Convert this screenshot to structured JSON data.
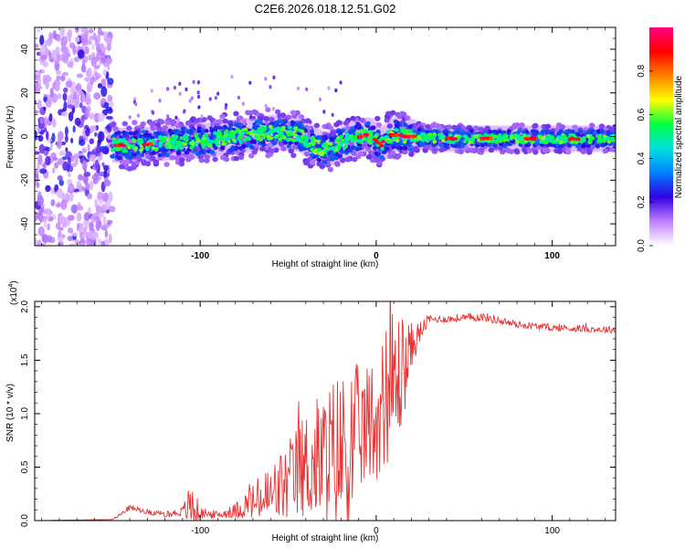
{
  "title": "C2E6.2026.018.12.51.G02",
  "chart_data": [
    {
      "type": "heatmap",
      "xlabel": "Height of straight line (km)",
      "ylabel": "Frequency (Hz)",
      "xlim": [
        -194,
        136
      ],
      "ylim": [
        -50,
        50
      ],
      "xticks": [
        -100,
        0,
        100
      ],
      "xtick_labels": [
        "-100",
        "0",
        "100"
      ],
      "yticks": [
        -40,
        -20,
        0,
        20,
        40
      ],
      "ytick_labels": [
        "-40",
        "-20",
        "0",
        "20",
        "40"
      ],
      "colorbar": {
        "label": "Normalized spectral amplitude",
        "range": [
          0,
          1
        ],
        "ticks": [
          0.0,
          0.2,
          0.4,
          0.6,
          0.8
        ],
        "tick_labels": [
          "0.0",
          "0.2",
          "0.4",
          "0.6",
          "0.8"
        ],
        "colors": [
          "#ffffff",
          "#c080ff",
          "#3000e0",
          "#0080ff",
          "#00e0e0",
          "#00ff40",
          "#ffff00",
          "#ff8000",
          "#ff0000",
          "#ff0080"
        ]
      },
      "ridge_center": {
        "x": [
          -194,
          -150,
          -140,
          -120,
          -100,
          -80,
          -60,
          -45,
          -35,
          -30,
          -25,
          -20,
          -15,
          -10,
          -5,
          0,
          3,
          6,
          10,
          20,
          40,
          80,
          136
        ],
        "y": [
          0,
          -4,
          -4,
          -3,
          -2,
          0,
          2,
          1,
          -4,
          -6,
          -5,
          -3,
          -1,
          0,
          1,
          -2,
          -4,
          0,
          1,
          0,
          -1,
          -1,
          -1
        ]
      },
      "noise_region_x": [
        -194,
        -150
      ]
    },
    {
      "type": "line",
      "xlabel": "Height of straight line (km)",
      "ylabel": "SNR (10 * v/v)",
      "y_multiplier": "(x10",
      "y_multiplier_exp": "4",
      "xlim": [
        -194,
        136
      ],
      "ylim": [
        0,
        2.05
      ],
      "xticks": [
        -100,
        0,
        100
      ],
      "xtick_labels": [
        "-100",
        "0",
        "100"
      ],
      "yticks": [
        0.0,
        0.5,
        1.0,
        1.5,
        2.0
      ],
      "ytick_labels": [
        "0.0",
        "0.5",
        "1.0",
        "1.5",
        "2.0"
      ],
      "line_color": "#e83232",
      "envelope": {
        "x": [
          -194,
          -150,
          -145,
          -140,
          -130,
          -120,
          -110,
          -105,
          -100,
          -90,
          -80,
          -75,
          -70,
          -60,
          -50,
          -40,
          -30,
          -20,
          -15,
          -10,
          -5,
          0,
          5,
          10,
          15,
          20,
          25,
          30,
          40,
          60,
          80,
          100,
          136
        ],
        "mean": [
          0.0,
          0.01,
          0.06,
          0.12,
          0.08,
          0.05,
          0.08,
          0.12,
          0.06,
          0.05,
          0.08,
          0.12,
          0.15,
          0.2,
          0.3,
          0.45,
          0.5,
          0.55,
          0.55,
          0.75,
          0.8,
          0.9,
          1.05,
          1.2,
          1.3,
          1.6,
          1.75,
          1.88,
          1.88,
          1.9,
          1.83,
          1.8,
          1.78
        ],
        "amplitude": [
          0.0,
          0.0,
          0.02,
          0.03,
          0.03,
          0.03,
          0.05,
          0.28,
          0.06,
          0.04,
          0.08,
          0.15,
          0.2,
          0.35,
          0.45,
          0.6,
          0.75,
          0.9,
          1.0,
          0.7,
          0.65,
          0.75,
          0.75,
          0.9,
          0.6,
          0.25,
          0.12,
          0.05,
          0.04,
          0.05,
          0.04,
          0.04,
          0.04
        ]
      }
    }
  ]
}
